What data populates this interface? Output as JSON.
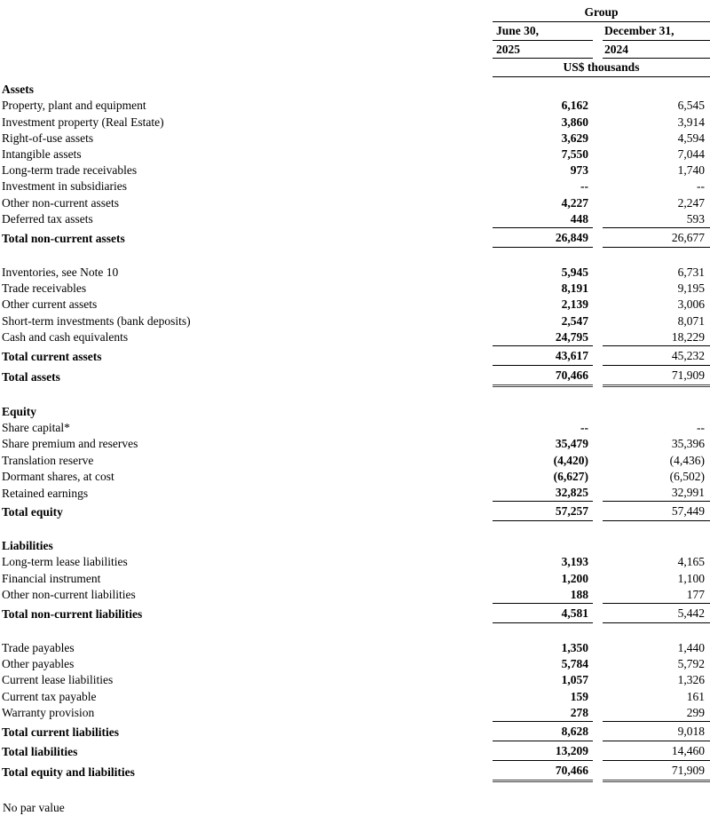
{
  "table": {
    "group_header": "Group",
    "units_header": "US$ thousands",
    "columns": [
      {
        "line1": "June 30,",
        "line2": "2025"
      },
      {
        "line1": "December 31,",
        "line2": "2024"
      }
    ],
    "rows": [
      {
        "type": "section",
        "label": "Assets",
        "v1": "",
        "v2": "",
        "underline": "none"
      },
      {
        "type": "item",
        "label": "Property, plant and equipment",
        "v1": "6,162",
        "v2": "6,545",
        "underline": "none"
      },
      {
        "type": "item",
        "label": "Investment property (Real Estate)",
        "v1": "3,860",
        "v2": "3,914",
        "underline": "none"
      },
      {
        "type": "item",
        "label": "Right-of-use assets",
        "v1": "3,629",
        "v2": "4,594",
        "underline": "none"
      },
      {
        "type": "item",
        "label": "Intangible assets",
        "v1": "7,550",
        "v2": "7,044",
        "underline": "none"
      },
      {
        "type": "item",
        "label": "Long-term trade receivables",
        "v1": "973",
        "v2": "1,740",
        "underline": "none"
      },
      {
        "type": "item",
        "label": "Investment in subsidiaries",
        "v1": "--",
        "v2": "--",
        "underline": "none"
      },
      {
        "type": "item",
        "label": "Other non-current assets",
        "v1": "4,227",
        "v2": "2,247",
        "underline": "none"
      },
      {
        "type": "item",
        "label": "Deferred tax assets",
        "v1": "448",
        "v2": "593",
        "underline": "single"
      },
      {
        "type": "total",
        "label": "Total non-current assets",
        "v1": "26,849",
        "v2": "26,677",
        "underline": "single"
      },
      {
        "type": "spacer"
      },
      {
        "type": "item",
        "label": "Inventories, see Note 10",
        "v1": "5,945",
        "v2": "6,731",
        "underline": "none"
      },
      {
        "type": "item",
        "label": "Trade receivables",
        "v1": "8,191",
        "v2": "9,195",
        "underline": "none"
      },
      {
        "type": "item",
        "label": "Other current assets",
        "v1": "2,139",
        "v2": "3,006",
        "underline": "none"
      },
      {
        "type": "item",
        "label": "Short-term investments (bank deposits)",
        "v1": "2,547",
        "v2": "8,071",
        "underline": "none"
      },
      {
        "type": "item",
        "label": "Cash and cash equivalents",
        "v1": "24,795",
        "v2": "18,229",
        "underline": "single"
      },
      {
        "type": "total",
        "label": "Total current assets",
        "v1": "43,617",
        "v2": "45,232",
        "underline": "single"
      },
      {
        "type": "total",
        "label": "Total assets",
        "v1": "70,466",
        "v2": "71,909",
        "underline": "double"
      },
      {
        "type": "spacer"
      },
      {
        "type": "section",
        "label": "Equity",
        "v1": "",
        "v2": "",
        "underline": "none"
      },
      {
        "type": "item",
        "label": "Share capital*",
        "v1": "--",
        "v2": "--",
        "underline": "none"
      },
      {
        "type": "item",
        "label": "Share premium and reserves",
        "v1": "35,479",
        "v2": "35,396",
        "underline": "none"
      },
      {
        "type": "item",
        "label": "Translation reserve",
        "v1": "(4,420)",
        "v2": "(4,436)",
        "underline": "none"
      },
      {
        "type": "item",
        "label": "Dormant shares, at cost",
        "v1": "(6,627)",
        "v2": "(6,502)",
        "underline": "none"
      },
      {
        "type": "item",
        "label": "Retained earnings",
        "v1": "32,825",
        "v2": "32,991",
        "underline": "single"
      },
      {
        "type": "total",
        "label": "Total equity",
        "v1": "57,257",
        "v2": "57,449",
        "underline": "single"
      },
      {
        "type": "spacer"
      },
      {
        "type": "section",
        "label": "Liabilities",
        "v1": "",
        "v2": "",
        "underline": "none"
      },
      {
        "type": "item",
        "label": "Long-term lease liabilities",
        "v1": "3,193",
        "v2": "4,165",
        "underline": "none"
      },
      {
        "type": "item",
        "label": "Financial instrument",
        "v1": "1,200",
        "v2": "1,100",
        "underline": "none"
      },
      {
        "type": "item",
        "label": "Other non-current liabilities",
        "v1": "188",
        "v2": "177",
        "underline": "single"
      },
      {
        "type": "total",
        "label": "Total non-current liabilities",
        "v1": "4,581",
        "v2": "5,442",
        "underline": "single"
      },
      {
        "type": "spacer"
      },
      {
        "type": "item",
        "label": "Trade payables",
        "v1": "1,350",
        "v2": "1,440",
        "underline": "none"
      },
      {
        "type": "item",
        "label": "Other payables",
        "v1": "5,784",
        "v2": "5,792",
        "underline": "none"
      },
      {
        "type": "item",
        "label": "Current lease liabilities",
        "v1": "1,057",
        "v2": "1,326",
        "underline": "none"
      },
      {
        "type": "item",
        "label": "Current tax payable",
        "v1": "159",
        "v2": "161",
        "underline": "none"
      },
      {
        "type": "item",
        "label": "Warranty provision",
        "v1": "278",
        "v2": "299",
        "underline": "single"
      },
      {
        "type": "total",
        "label": "Total current liabilities",
        "v1": "8,628",
        "v2": "9,018",
        "underline": "single"
      },
      {
        "type": "total",
        "label": "Total liabilities",
        "v1": "13,209",
        "v2": "14,460",
        "underline": "single"
      },
      {
        "type": "total",
        "label": "Total equity and liabilities",
        "v1": "70,466",
        "v2": "71,909",
        "underline": "double"
      }
    ]
  },
  "footnote": "No par value"
}
